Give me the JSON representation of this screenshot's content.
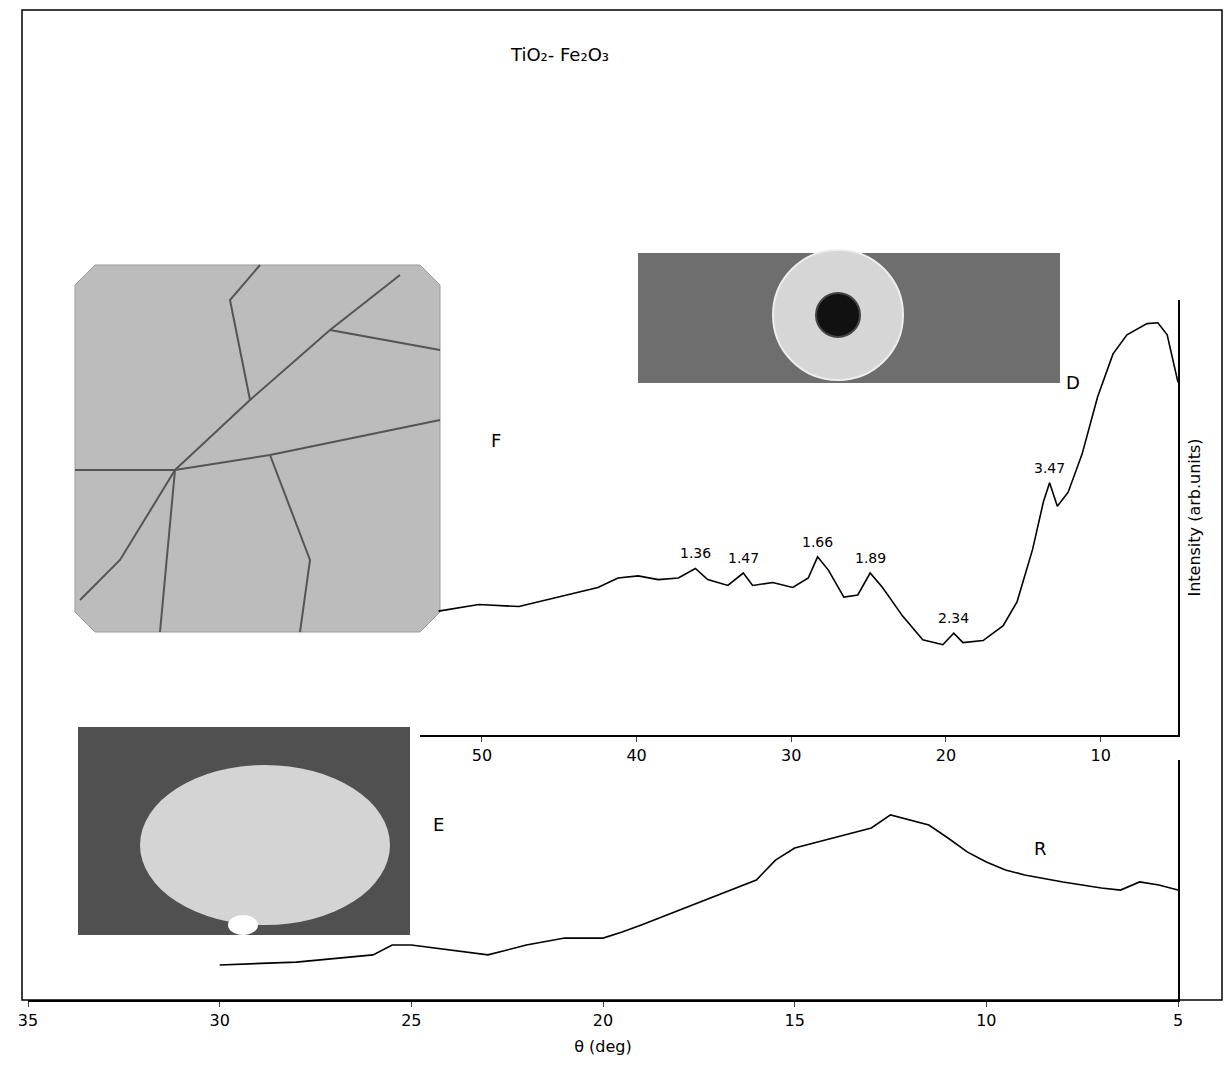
{
  "chart_data": [
    {
      "type": "line",
      "title": "TiO₂- Fe₂O₃",
      "y_label": "Intensity (arb.units)",
      "x": [
        52.8,
        50.2,
        47.6,
        45.0,
        42.5,
        41.2,
        39.9,
        38.6,
        37.3,
        36.2,
        35.4,
        34.1,
        33.1,
        32.5,
        31.2,
        29.9,
        28.9,
        28.3,
        27.6,
        26.6,
        25.7,
        24.9,
        24.1,
        22.8,
        21.5,
        20.2,
        19.5,
        18.9,
        17.6,
        16.3,
        15.4,
        14.4,
        13.7,
        13.3,
        12.8,
        12.1,
        11.2,
        10.2,
        9.2,
        8.3,
        7.0,
        6.3,
        5.7,
        5.0
      ],
      "values": [
        29.9,
        31.5,
        31.0,
        33.3,
        35.6,
        37.9,
        38.4,
        37.5,
        37.9,
        40.2,
        37.5,
        36.1,
        39.1,
        36.1,
        36.8,
        35.6,
        37.9,
        43.0,
        39.8,
        33.3,
        33.8,
        39.1,
        35.6,
        28.7,
        23.0,
        21.8,
        24.6,
        22.3,
        22.8,
        26.4,
        32.2,
        44.8,
        56.3,
        60.9,
        55.2,
        58.6,
        67.8,
        81.6,
        92.0,
        96.6,
        99.3,
        99.5,
        96.6,
        85.1
      ],
      "xlim": [
        54,
        5
      ],
      "xticks": [
        50,
        40,
        30,
        20,
        10
      ],
      "ylim": [
        0,
        105
      ],
      "yticks": [],
      "tick_labels": "x",
      "color": "#000000",
      "peak_labels": [
        {
          "text": "1.36",
          "x": 36.2
        },
        {
          "text": "1.47",
          "x": 33.1
        },
        {
          "text": "1.66",
          "x": 28.3
        },
        {
          "text": "1.89",
          "x": 24.9
        },
        {
          "text": "2.34",
          "x": 19.5
        },
        {
          "text": "3.47",
          "x": 13.3
        }
      ],
      "annotations": [
        {
          "text": "F",
          "x": 49.1,
          "y": 71
        },
        {
          "text": "D",
          "x": 11.8,
          "y": 85
        }
      ]
    },
    {
      "type": "line",
      "x_label": "θ (deg)",
      "x": [
        30,
        28,
        26,
        25.5,
        25,
        24,
        23,
        22,
        21,
        20,
        19.5,
        19,
        18,
        17,
        16,
        15.5,
        15,
        14,
        13,
        12.5,
        12,
        11.5,
        11,
        10.5,
        10,
        9.5,
        9,
        8,
        7,
        6.5,
        6,
        5.5,
        5
      ],
      "values": [
        14.6,
        15.8,
        18.8,
        22.9,
        22.9,
        20.8,
        18.8,
        22.9,
        25.8,
        25.8,
        28.3,
        31.3,
        37.5,
        43.8,
        50.0,
        58.3,
        63.3,
        67.5,
        71.7,
        77.1,
        75.0,
        72.9,
        67.5,
        61.7,
        57.5,
        54.2,
        52.1,
        49.2,
        46.7,
        45.8,
        49.2,
        47.9,
        45.8
      ],
      "xlim": [
        35,
        5
      ],
      "xticks": [
        35,
        30,
        25,
        20,
        15,
        10,
        5
      ],
      "ylim": [
        0,
        100
      ],
      "yticks": [],
      "tick_labels": "x",
      "color": "#000000",
      "annotations": [
        {
          "text": "E",
          "x": 24.3,
          "y": 73
        },
        {
          "text": "R",
          "x": 8.6,
          "y": 63
        }
      ]
    }
  ]
}
